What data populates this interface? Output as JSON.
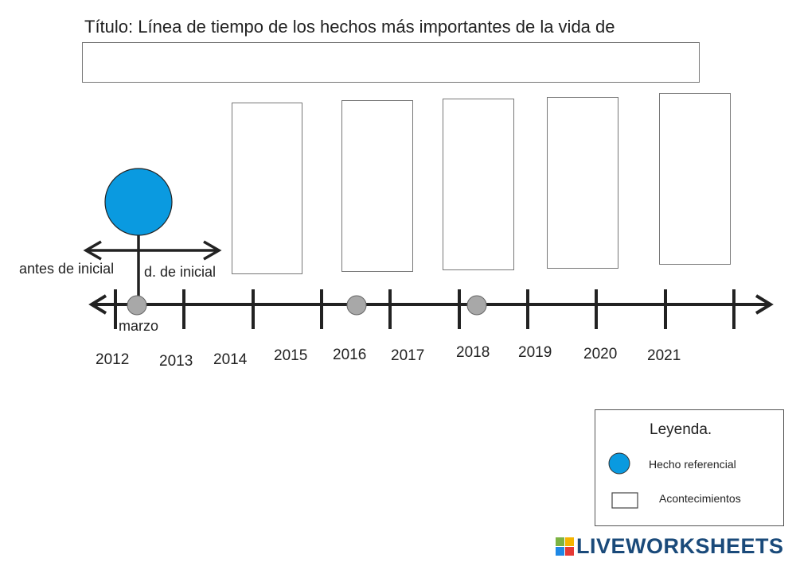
{
  "title": "Título: Línea de tiempo de los hechos más importantes de la vida de",
  "title_input": {
    "value": "",
    "placeholder": ""
  },
  "event_boxes": [
    {
      "value": ""
    },
    {
      "value": ""
    },
    {
      "value": ""
    },
    {
      "value": ""
    },
    {
      "value": ""
    }
  ],
  "reference": {
    "before_label": "antes de inicial",
    "after_label": "d. de inicial",
    "month_label": "marzo",
    "color": "#0a9ae0"
  },
  "years": [
    "2012",
    "2013",
    "2014",
    "2015",
    "2016",
    "2017",
    "2018",
    "2019",
    "2020",
    "2021"
  ],
  "marker_color": "#a8a8a8",
  "legend": {
    "title": "Leyenda.",
    "items": [
      {
        "icon": "blue-circle",
        "label": "Hecho referencial"
      },
      {
        "icon": "rectangle",
        "label": "Acontecimientos"
      }
    ]
  },
  "logo": {
    "text": "LIVEWORKSHEETS",
    "tiles": [
      "L",
      "I",
      "V",
      "E"
    ]
  }
}
